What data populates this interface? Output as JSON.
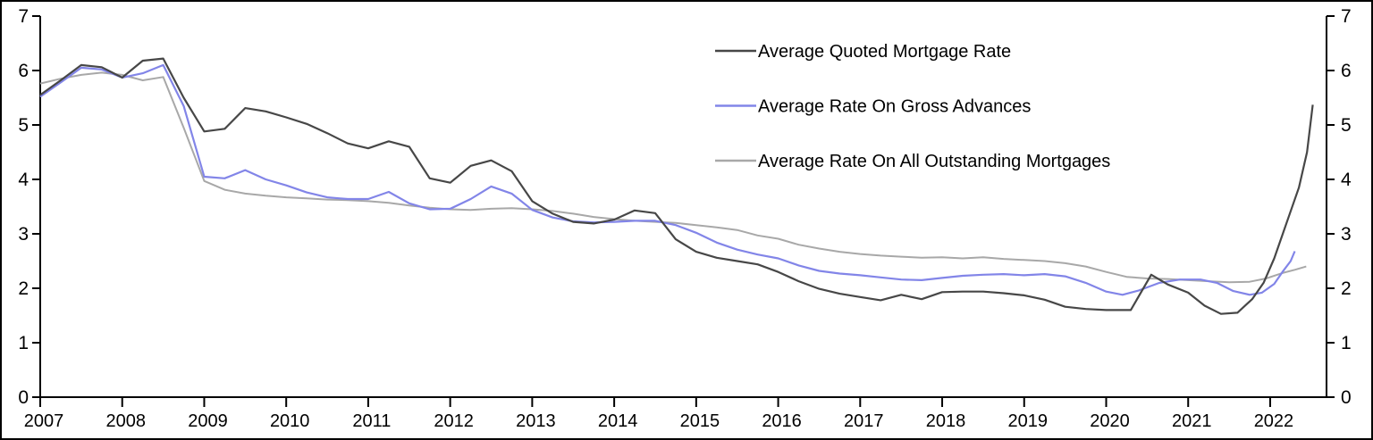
{
  "chart_data": {
    "type": "line",
    "title": "",
    "xlabel": "",
    "ylabel": "",
    "x_axis": {
      "tick_years": [
        2007,
        2008,
        2009,
        2010,
        2011,
        2012,
        2013,
        2014,
        2015,
        2016,
        2017,
        2018,
        2019,
        2020,
        2021,
        2022
      ],
      "min": 2007,
      "max": 2022.72
    },
    "y_axis": {
      "ticks": [
        0,
        1,
        2,
        3,
        4,
        5,
        6,
        7
      ],
      "min": 0,
      "max": 7,
      "mirrored_right": true,
      "grid": false
    },
    "legend_position": "top-center",
    "axis_color": "#000000",
    "series": [
      {
        "name": "Average Rate On All Outstanding Mortgages",
        "color": "#a8a8a8",
        "stroke_width": 2,
        "points": [
          [
            2007.0,
            5.76
          ],
          [
            2007.25,
            5.85
          ],
          [
            2007.5,
            5.92
          ],
          [
            2007.75,
            5.96
          ],
          [
            2008.0,
            5.92
          ],
          [
            2008.25,
            5.82
          ],
          [
            2008.5,
            5.88
          ],
          [
            2008.75,
            4.95
          ],
          [
            2009.0,
            3.97
          ],
          [
            2009.25,
            3.81
          ],
          [
            2009.5,
            3.74
          ],
          [
            2009.75,
            3.7
          ],
          [
            2010.0,
            3.67
          ],
          [
            2010.25,
            3.65
          ],
          [
            2010.5,
            3.63
          ],
          [
            2010.75,
            3.62
          ],
          [
            2011.0,
            3.6
          ],
          [
            2011.25,
            3.57
          ],
          [
            2011.5,
            3.52
          ],
          [
            2011.75,
            3.48
          ],
          [
            2012.0,
            3.45
          ],
          [
            2012.25,
            3.44
          ],
          [
            2012.5,
            3.46
          ],
          [
            2012.75,
            3.47
          ],
          [
            2013.0,
            3.45
          ],
          [
            2013.25,
            3.42
          ],
          [
            2013.5,
            3.37
          ],
          [
            2013.75,
            3.31
          ],
          [
            2014.0,
            3.27
          ],
          [
            2014.25,
            3.24
          ],
          [
            2014.5,
            3.22
          ],
          [
            2014.75,
            3.2
          ],
          [
            2015.0,
            3.16
          ],
          [
            2015.25,
            3.12
          ],
          [
            2015.5,
            3.07
          ],
          [
            2015.75,
            2.97
          ],
          [
            2016.0,
            2.91
          ],
          [
            2016.25,
            2.8
          ],
          [
            2016.5,
            2.73
          ],
          [
            2016.75,
            2.67
          ],
          [
            2017.0,
            2.63
          ],
          [
            2017.25,
            2.6
          ],
          [
            2017.5,
            2.58
          ],
          [
            2017.75,
            2.56
          ],
          [
            2018.0,
            2.57
          ],
          [
            2018.25,
            2.55
          ],
          [
            2018.5,
            2.57
          ],
          [
            2018.75,
            2.54
          ],
          [
            2019.0,
            2.52
          ],
          [
            2019.25,
            2.5
          ],
          [
            2019.5,
            2.46
          ],
          [
            2019.75,
            2.4
          ],
          [
            2020.0,
            2.3
          ],
          [
            2020.25,
            2.21
          ],
          [
            2020.5,
            2.18
          ],
          [
            2020.75,
            2.17
          ],
          [
            2021.0,
            2.15
          ],
          [
            2021.25,
            2.13
          ],
          [
            2021.5,
            2.11
          ],
          [
            2021.75,
            2.12
          ],
          [
            2021.95,
            2.18
          ],
          [
            2022.15,
            2.28
          ],
          [
            2022.3,
            2.34
          ],
          [
            2022.44,
            2.4
          ]
        ]
      },
      {
        "name": "Average Rate On Gross Advances",
        "color": "#8285e8",
        "stroke_width": 2.2,
        "points": [
          [
            2007.0,
            5.52
          ],
          [
            2007.25,
            5.78
          ],
          [
            2007.5,
            6.05
          ],
          [
            2007.75,
            6.02
          ],
          [
            2008.0,
            5.87
          ],
          [
            2008.25,
            5.95
          ],
          [
            2008.5,
            6.1
          ],
          [
            2008.75,
            5.35
          ],
          [
            2009.0,
            4.05
          ],
          [
            2009.25,
            4.02
          ],
          [
            2009.5,
            4.17
          ],
          [
            2009.75,
            4.0
          ],
          [
            2010.0,
            3.89
          ],
          [
            2010.25,
            3.76
          ],
          [
            2010.5,
            3.67
          ],
          [
            2010.75,
            3.64
          ],
          [
            2011.0,
            3.64
          ],
          [
            2011.25,
            3.77
          ],
          [
            2011.5,
            3.56
          ],
          [
            2011.75,
            3.45
          ],
          [
            2012.0,
            3.46
          ],
          [
            2012.25,
            3.64
          ],
          [
            2012.5,
            3.87
          ],
          [
            2012.75,
            3.74
          ],
          [
            2013.0,
            3.44
          ],
          [
            2013.25,
            3.3
          ],
          [
            2013.5,
            3.23
          ],
          [
            2013.75,
            3.21
          ],
          [
            2014.0,
            3.22
          ],
          [
            2014.25,
            3.24
          ],
          [
            2014.5,
            3.24
          ],
          [
            2014.75,
            3.16
          ],
          [
            2015.0,
            3.02
          ],
          [
            2015.25,
            2.84
          ],
          [
            2015.5,
            2.71
          ],
          [
            2015.75,
            2.62
          ],
          [
            2016.0,
            2.55
          ],
          [
            2016.25,
            2.42
          ],
          [
            2016.5,
            2.32
          ],
          [
            2016.75,
            2.27
          ],
          [
            2017.0,
            2.24
          ],
          [
            2017.25,
            2.2
          ],
          [
            2017.5,
            2.16
          ],
          [
            2017.75,
            2.15
          ],
          [
            2018.0,
            2.19
          ],
          [
            2018.25,
            2.23
          ],
          [
            2018.5,
            2.25
          ],
          [
            2018.75,
            2.26
          ],
          [
            2019.0,
            2.24
          ],
          [
            2019.25,
            2.26
          ],
          [
            2019.5,
            2.22
          ],
          [
            2019.75,
            2.1
          ],
          [
            2020.0,
            1.94
          ],
          [
            2020.2,
            1.88
          ],
          [
            2020.4,
            1.96
          ],
          [
            2020.65,
            2.1
          ],
          [
            2020.9,
            2.16
          ],
          [
            2021.15,
            2.16
          ],
          [
            2021.35,
            2.1
          ],
          [
            2021.55,
            1.95
          ],
          [
            2021.75,
            1.88
          ],
          [
            2021.9,
            1.92
          ],
          [
            2022.05,
            2.08
          ],
          [
            2022.15,
            2.3
          ],
          [
            2022.25,
            2.5
          ],
          [
            2022.3,
            2.68
          ]
        ]
      },
      {
        "name": "Average Quoted Mortgage Rate",
        "color": "#474747",
        "stroke_width": 2.2,
        "points": [
          [
            2007.0,
            5.55
          ],
          [
            2007.25,
            5.82
          ],
          [
            2007.5,
            6.1
          ],
          [
            2007.75,
            6.06
          ],
          [
            2008.0,
            5.87
          ],
          [
            2008.25,
            6.18
          ],
          [
            2008.5,
            6.22
          ],
          [
            2008.75,
            5.5
          ],
          [
            2009.0,
            4.88
          ],
          [
            2009.25,
            4.93
          ],
          [
            2009.5,
            5.31
          ],
          [
            2009.75,
            5.25
          ],
          [
            2010.0,
            5.14
          ],
          [
            2010.25,
            5.02
          ],
          [
            2010.5,
            4.85
          ],
          [
            2010.75,
            4.66
          ],
          [
            2011.0,
            4.57
          ],
          [
            2011.25,
            4.7
          ],
          [
            2011.5,
            4.6
          ],
          [
            2011.75,
            4.02
          ],
          [
            2012.0,
            3.94
          ],
          [
            2012.25,
            4.25
          ],
          [
            2012.5,
            4.35
          ],
          [
            2012.75,
            4.15
          ],
          [
            2013.0,
            3.6
          ],
          [
            2013.25,
            3.37
          ],
          [
            2013.5,
            3.22
          ],
          [
            2013.75,
            3.19
          ],
          [
            2014.0,
            3.26
          ],
          [
            2014.25,
            3.43
          ],
          [
            2014.5,
            3.38
          ],
          [
            2014.75,
            2.9
          ],
          [
            2015.0,
            2.67
          ],
          [
            2015.25,
            2.56
          ],
          [
            2015.5,
            2.5
          ],
          [
            2015.75,
            2.44
          ],
          [
            2016.0,
            2.3
          ],
          [
            2016.25,
            2.13
          ],
          [
            2016.5,
            1.99
          ],
          [
            2016.75,
            1.9
          ],
          [
            2017.0,
            1.84
          ],
          [
            2017.25,
            1.78
          ],
          [
            2017.5,
            1.88
          ],
          [
            2017.75,
            1.8
          ],
          [
            2018.0,
            1.93
          ],
          [
            2018.25,
            1.94
          ],
          [
            2018.5,
            1.94
          ],
          [
            2018.75,
            1.91
          ],
          [
            2019.0,
            1.87
          ],
          [
            2019.25,
            1.79
          ],
          [
            2019.5,
            1.66
          ],
          [
            2019.75,
            1.62
          ],
          [
            2020.0,
            1.6
          ],
          [
            2020.3,
            1.6
          ],
          [
            2020.55,
            2.25
          ],
          [
            2020.75,
            2.07
          ],
          [
            2021.0,
            1.92
          ],
          [
            2021.2,
            1.68
          ],
          [
            2021.4,
            1.53
          ],
          [
            2021.6,
            1.55
          ],
          [
            2021.78,
            1.8
          ],
          [
            2021.92,
            2.1
          ],
          [
            2022.05,
            2.55
          ],
          [
            2022.2,
            3.2
          ],
          [
            2022.35,
            3.85
          ],
          [
            2022.45,
            4.5
          ],
          [
            2022.52,
            5.37
          ]
        ]
      }
    ],
    "legend": [
      {
        "label": "Average Quoted Mortgage Rate",
        "color": "#474747"
      },
      {
        "label": "Average Rate On Gross Advances",
        "color": "#8285e8"
      },
      {
        "label": "Average Rate On All Outstanding Mortgages",
        "color": "#a8a8a8"
      }
    ]
  }
}
